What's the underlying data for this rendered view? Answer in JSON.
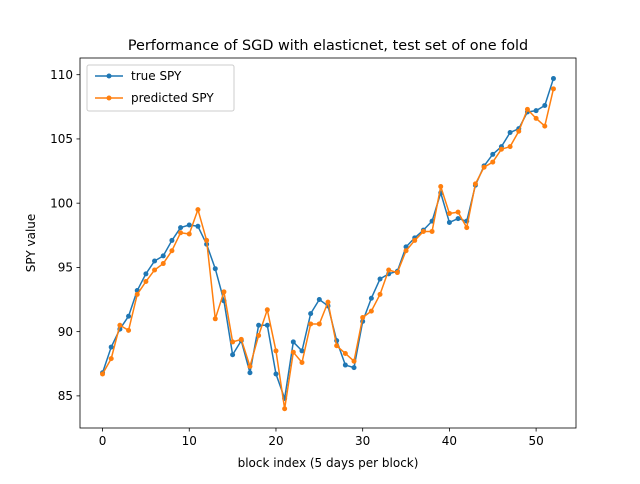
{
  "chart_data": {
    "type": "line",
    "title": "Performance of SGD with elasticnet, test set of one fold",
    "xlabel": "block index (5 days per block)",
    "ylabel": "SPY value",
    "xlim": [
      -2.6,
      54.6
    ],
    "ylim": [
      82.5,
      111.3
    ],
    "x_ticks": [
      0,
      10,
      20,
      30,
      40,
      50
    ],
    "y_ticks": [
      85,
      90,
      95,
      100,
      105,
      110
    ],
    "grid": false,
    "legend_position": "top-left",
    "x": [
      0,
      1,
      2,
      3,
      4,
      5,
      6,
      7,
      8,
      9,
      10,
      11,
      12,
      13,
      14,
      15,
      16,
      17,
      18,
      19,
      20,
      21,
      22,
      23,
      24,
      25,
      26,
      27,
      28,
      29,
      30,
      31,
      32,
      33,
      34,
      35,
      36,
      37,
      38,
      39,
      40,
      41,
      42,
      43,
      44,
      45,
      46,
      47,
      48,
      49,
      50,
      51,
      52
    ],
    "series": [
      {
        "name": "true SPY",
        "color": "#1f77b4",
        "values": [
          86.8,
          88.8,
          90.2,
          91.2,
          93.2,
          94.5,
          95.5,
          95.9,
          97.1,
          98.1,
          98.3,
          98.2,
          96.8,
          94.9,
          92.4,
          88.2,
          89.3,
          86.8,
          90.5,
          90.5,
          86.7,
          84.8,
          89.2,
          88.5,
          91.4,
          92.5,
          92.0,
          89.3,
          87.4,
          87.2,
          90.8,
          92.6,
          94.1,
          94.5,
          94.7,
          96.6,
          97.3,
          97.9,
          98.6,
          100.8,
          98.5,
          98.8,
          98.6,
          101.4,
          102.9,
          103.8,
          104.4,
          105.5,
          105.8,
          107.1,
          107.2,
          107.6,
          109.7
        ]
      },
      {
        "name": "predicted SPY",
        "color": "#ff7f0e",
        "values": [
          86.7,
          87.9,
          90.5,
          90.1,
          92.9,
          93.9,
          94.8,
          95.3,
          96.3,
          97.7,
          97.6,
          99.5,
          97.1,
          91.0,
          93.1,
          89.2,
          89.4,
          87.3,
          89.7,
          91.7,
          88.5,
          84.0,
          88.4,
          87.6,
          90.6,
          90.6,
          92.3,
          88.9,
          88.3,
          87.7,
          91.1,
          91.6,
          92.9,
          94.8,
          94.6,
          96.3,
          97.1,
          97.8,
          97.8,
          101.3,
          99.2,
          99.3,
          98.1,
          101.5,
          102.8,
          103.2,
          104.2,
          104.4,
          105.6,
          107.3,
          106.6,
          106.0,
          108.9
        ]
      }
    ]
  }
}
